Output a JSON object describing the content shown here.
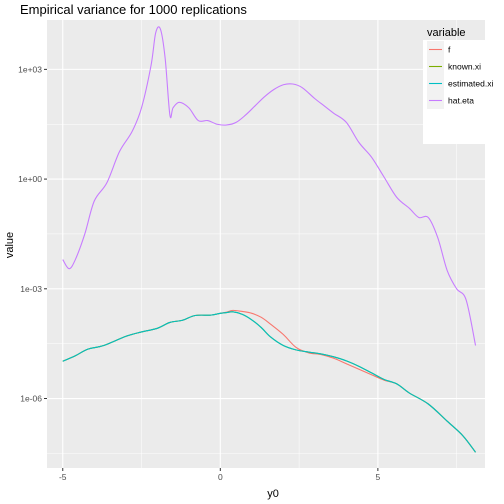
{
  "chart_data": {
    "type": "line",
    "title": "Empirical variance for 1000 replications",
    "xlabel": "y0",
    "ylabel": "value",
    "xlim": [
      -5.5,
      8.4
    ],
    "ylog": true,
    "ylim_log10": [
      -7.9,
      4.35
    ],
    "x_ticks": [
      -5,
      0,
      5
    ],
    "x_tick_labels": [
      "-5",
      "0",
      "5"
    ],
    "y_ticks_log10": [
      -6,
      -3,
      0,
      3
    ],
    "y_tick_labels": [
      "1e-06",
      "1e-03",
      "1e+00",
      "1e+03"
    ],
    "legend": {
      "title": "variable",
      "position": "top-right"
    },
    "series": [
      {
        "name": "f",
        "color": "#F8766D",
        "x": [
          -5.0,
          -4.6,
          -4.2,
          -3.7,
          -3.0,
          -2.5,
          -2.0,
          -1.6,
          -1.2,
          -0.8,
          -0.3,
          0.0,
          0.2,
          0.4,
          0.7,
          1.0,
          1.3,
          1.6,
          2.0,
          2.4,
          2.8,
          3.2,
          3.6,
          4.0,
          4.4,
          4.8,
          5.2,
          5.6,
          6.0,
          6.6,
          7.2,
          7.7,
          8.1
        ],
        "log10y": [
          -4.98,
          -4.83,
          -4.65,
          -4.55,
          -4.3,
          -4.18,
          -4.08,
          -3.92,
          -3.86,
          -3.73,
          -3.72,
          -3.67,
          -3.64,
          -3.59,
          -3.62,
          -3.67,
          -3.78,
          -3.97,
          -4.25,
          -4.6,
          -4.75,
          -4.8,
          -4.9,
          -5.05,
          -5.2,
          -5.35,
          -5.5,
          -5.6,
          -5.85,
          -6.15,
          -6.62,
          -7.02,
          -7.47
        ]
      },
      {
        "name": "known.xi",
        "color": "#7CAE00",
        "x": [
          -5.0,
          -4.6,
          -4.2,
          -3.7,
          -3.0,
          -2.5,
          -2.0,
          -1.6,
          -1.2,
          -0.8,
          -0.3,
          0.0,
          0.2,
          0.4,
          0.7,
          1.0,
          1.3,
          1.6,
          2.0,
          2.4,
          2.8,
          3.2,
          3.6,
          4.0,
          4.4,
          4.8,
          5.2,
          5.6,
          6.0,
          6.6,
          7.2,
          7.7,
          8.1
        ],
        "log10y": [
          -4.98,
          -4.83,
          -4.65,
          -4.55,
          -4.3,
          -4.18,
          -4.08,
          -3.92,
          -3.86,
          -3.73,
          -3.72,
          -3.67,
          -3.65,
          -3.63,
          -3.7,
          -3.85,
          -4.06,
          -4.32,
          -4.55,
          -4.67,
          -4.73,
          -4.78,
          -4.86,
          -4.97,
          -5.12,
          -5.3,
          -5.48,
          -5.6,
          -5.85,
          -6.15,
          -6.62,
          -7.02,
          -7.47
        ]
      },
      {
        "name": "estimated.xi",
        "color": "#00BFC4",
        "x": [
          -5.0,
          -4.6,
          -4.2,
          -3.7,
          -3.0,
          -2.5,
          -2.0,
          -1.6,
          -1.2,
          -0.8,
          -0.3,
          0.0,
          0.2,
          0.4,
          0.7,
          1.0,
          1.3,
          1.6,
          2.0,
          2.4,
          2.8,
          3.2,
          3.6,
          4.0,
          4.4,
          4.8,
          5.2,
          5.6,
          6.0,
          6.6,
          7.2,
          7.7,
          8.1
        ],
        "log10y": [
          -4.98,
          -4.83,
          -4.65,
          -4.55,
          -4.3,
          -4.18,
          -4.08,
          -3.92,
          -3.86,
          -3.73,
          -3.72,
          -3.67,
          -3.65,
          -3.63,
          -3.7,
          -3.85,
          -4.06,
          -4.32,
          -4.55,
          -4.67,
          -4.73,
          -4.78,
          -4.86,
          -4.97,
          -5.12,
          -5.3,
          -5.48,
          -5.6,
          -5.85,
          -6.15,
          -6.62,
          -7.02,
          -7.47
        ]
      },
      {
        "name": "hat.eta",
        "color": "#C77CFF",
        "x": [
          -5.0,
          -4.8,
          -4.6,
          -4.3,
          -4.0,
          -3.6,
          -3.2,
          -2.8,
          -2.5,
          -2.2,
          -2.05,
          -1.9,
          -1.75,
          -1.6,
          -1.5,
          -1.3,
          -1.0,
          -0.7,
          -0.4,
          -0.1,
          0.2,
          0.5,
          0.8,
          1.1,
          1.4,
          1.7,
          2.0,
          2.3,
          2.6,
          3.0,
          3.3,
          3.6,
          4.0,
          4.4,
          4.8,
          5.2,
          5.6,
          6.0,
          6.3,
          6.6,
          6.9,
          7.2,
          7.5,
          7.8,
          8.1
        ],
        "log10y": [
          -2.2,
          -2.45,
          -2.2,
          -1.5,
          -0.6,
          -0.1,
          0.75,
          1.3,
          1.95,
          3.1,
          4.0,
          4.1,
          3.3,
          1.75,
          1.95,
          2.1,
          1.95,
          1.6,
          1.6,
          1.5,
          1.48,
          1.55,
          1.75,
          2.0,
          2.25,
          2.45,
          2.58,
          2.6,
          2.5,
          2.2,
          2.0,
          1.8,
          1.55,
          1.0,
          0.6,
          0.05,
          -0.5,
          -0.8,
          -1.05,
          -1.05,
          -1.6,
          -2.5,
          -3.0,
          -3.3,
          -4.55
        ]
      }
    ]
  }
}
